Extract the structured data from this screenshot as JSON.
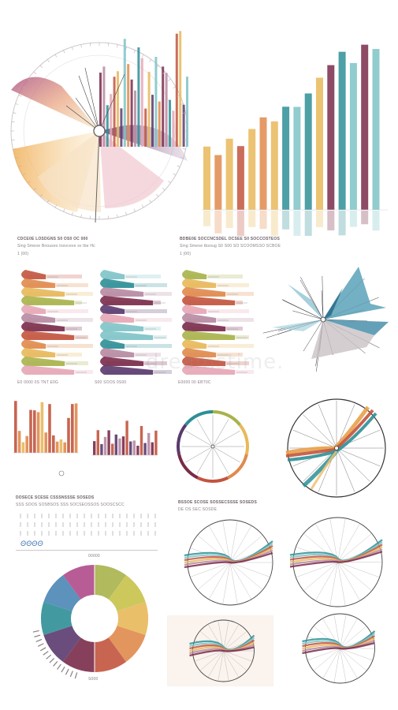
{
  "captions": {
    "row2_left_title": "CDCE0E LOSDGNS S0 OS0 OC 000",
    "row2_left_sub": "Sing Smeoe Bnouses tosvceve sv tbe Hc",
    "row2_left_num": "1 (00)",
    "row2_right_title": "BDBE0E SOCCNCSDEL OCSEE S0 SOCCOSTEOS",
    "row2_right_sub": "Sing Smeoe tbsoug S0 S00 SO SCOOMSSO SCBOE",
    "row2_right_num": "1 (00)",
    "ribbon_a": "E0 0000 0S TNT E0G",
    "ribbon_b": "S00 SOOS 0S00",
    "ribbon_c": "E0000 00 EBT0C",
    "row4_title": "DOSECE SCESE CSSSNSSSE SOSEDS",
    "row4_sub": "SSS SOOS SOSBSOS SSS SOCSEOSSOS SOOSCSCC",
    "row4_right_title": "BSSOE SCOSE SOSSECSSSE SOSEDS",
    "row4_right_sub": "DE OS SEC SOSDE",
    "handwritten": "ΘΘΘΘ",
    "ring_top": "00000",
    "ring_bottom": "S000"
  },
  "watermark_text": "dreamstime.",
  "colors": {
    "yellow": "#e8b85a",
    "orange": "#e08a4c",
    "red": "#c2543e",
    "plum": "#7a2b4a",
    "purple": "#5a3a6e",
    "teal": "#2d8f96",
    "tealLight": "#7ec3c6",
    "olive": "#a8b34a",
    "pink": "#e6a6b6",
    "mauve": "#b78aa2",
    "blue": "#4a86b5"
  }
}
